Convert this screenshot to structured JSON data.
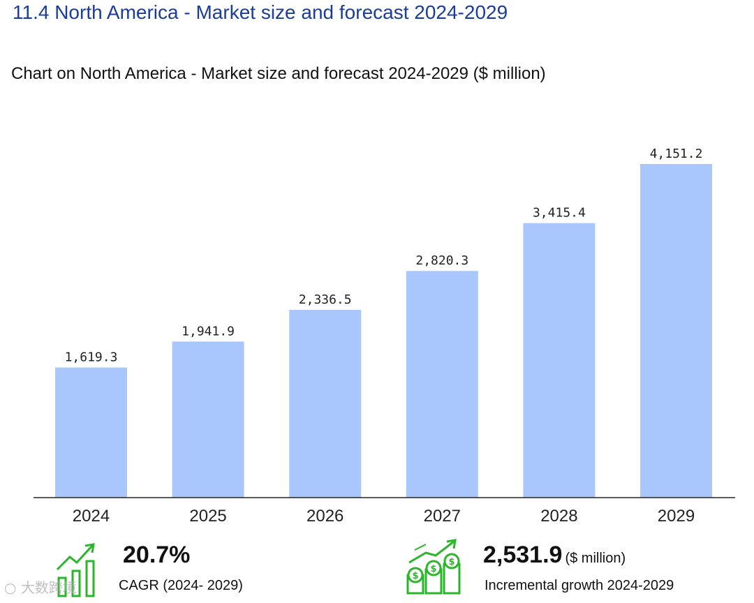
{
  "section_title": "11.4 North America - Market size and forecast 2024-2029",
  "chart_data": {
    "type": "bar",
    "title": "Chart on North America - Market size and forecast 2024-2029 ($ million)",
    "categories": [
      "2024",
      "2025",
      "2026",
      "2027",
      "2028",
      "2029"
    ],
    "values": [
      1619.3,
      1941.9,
      2336.5,
      2820.3,
      3415.4,
      4151.2
    ],
    "value_labels": [
      "1,619.3",
      "1,941.9",
      "2,336.5",
      "2,820.3",
      "3,415.4",
      "4,151.2"
    ],
    "ylim": [
      0,
      4151.2
    ],
    "xlabel": "",
    "ylabel": "",
    "grid": false,
    "bar_color": "#a9c7fc"
  },
  "stats": {
    "cagr": {
      "value": "20.7%",
      "caption": "CAGR (2024- 2029)",
      "icon": "growth-chart-icon"
    },
    "growth": {
      "value": "2,531.9",
      "unit": "($ million)",
      "caption": "Incremental growth 2024-2029",
      "icon": "coins-growth-icon"
    }
  },
  "watermark": "大数跨境"
}
